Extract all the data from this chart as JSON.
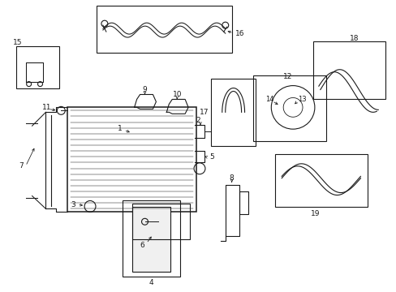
{
  "bg": "#ffffff",
  "lc": "#1a1a1a",
  "fig_w": 4.89,
  "fig_h": 3.6,
  "dpi": 100
}
